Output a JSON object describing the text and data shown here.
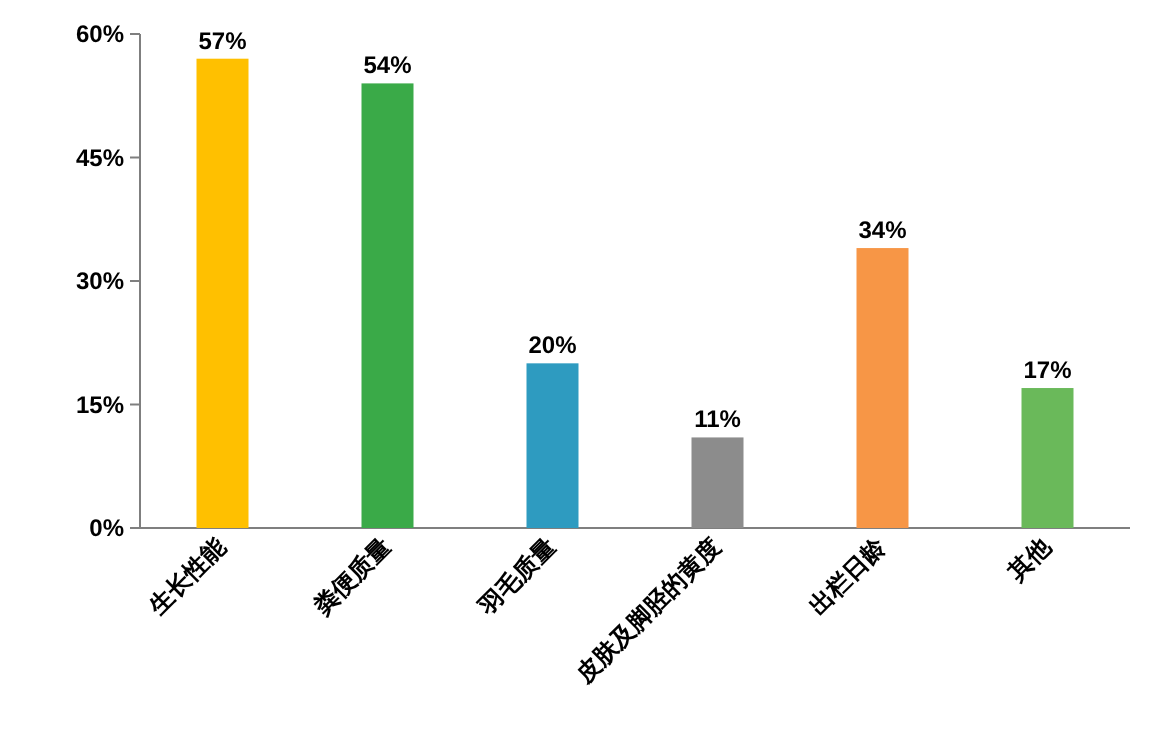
{
  "chart_data": {
    "type": "bar",
    "categories": [
      "生长性能",
      "粪便质量",
      "羽毛质量",
      "皮肤及脚胫的黄度",
      "出栏日龄",
      "其他"
    ],
    "values": [
      57,
      54,
      20,
      11,
      34,
      17
    ],
    "colors": [
      "#ffc000",
      "#3aaa48",
      "#2e9bc0",
      "#8c8c8c",
      "#f79646",
      "#6ab95a"
    ],
    "value_labels": [
      "57%",
      "54%",
      "20%",
      "11%",
      "34%",
      "17%"
    ],
    "ylim": [
      0,
      60
    ],
    "yticks": [
      {
        "value": 0,
        "label": "0%"
      },
      {
        "value": 15,
        "label": "15%"
      },
      {
        "value": 30,
        "label": "30%"
      },
      {
        "value": 45,
        "label": "45%"
      },
      {
        "value": 60,
        "label": "60%"
      }
    ],
    "grid": false
  }
}
